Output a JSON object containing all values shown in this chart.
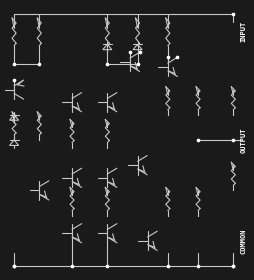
{
  "bg_color": "#1a1a1a",
  "line_color": "#c8c8c8",
  "dot_color": "#ffffff",
  "text_color": "#ffffff",
  "label_input": "INPUT",
  "label_output": "OUTPUT",
  "label_common": "COMMON",
  "fig_w": 2.55,
  "fig_h": 2.8,
  "dpi": 100
}
